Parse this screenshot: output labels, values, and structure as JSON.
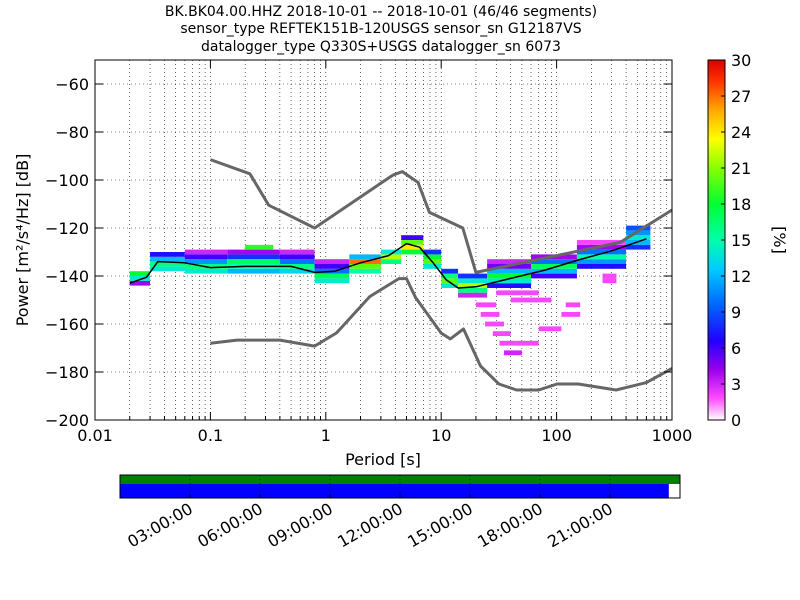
{
  "chart_data": {
    "type": "heatmap",
    "title_lines": [
      "BK.BK04.00.HHZ   2018-10-01 -- 2018-10-01  (46/46 segments)",
      "sensor_type REFTEK151B-120USGS sensor_sn G12187VS",
      "datalogger_type Q330S+USGS datalogger_sn 6073"
    ],
    "xlabel": "Period [s]",
    "ylabel": "Power [m²/s⁴/Hz] [dB]",
    "xscale": "log",
    "xlim": [
      0.01,
      1000
    ],
    "ylim": [
      -200,
      -50
    ],
    "x_ticks": [
      0.01,
      0.1,
      1,
      10,
      100,
      1000
    ],
    "x_tick_labels": [
      "0.01",
      "0.1",
      "1",
      "10",
      "100",
      "1000"
    ],
    "y_ticks": [
      -200,
      -180,
      -160,
      -140,
      -120,
      -100,
      -80,
      -60
    ],
    "y_tick_labels": [
      "−200",
      "−180",
      "−160",
      "−140",
      "−120",
      "−100",
      "−80",
      "−60"
    ],
    "grid": true,
    "colorbar": {
      "label": "[%]",
      "range": [
        0,
        30
      ],
      "ticks": [
        0,
        3,
        6,
        9,
        12,
        15,
        18,
        21,
        24,
        27,
        30
      ],
      "tick_labels": [
        "0",
        "3",
        "6",
        "9",
        "12",
        "15",
        "18",
        "21",
        "24",
        "27",
        "30"
      ]
    },
    "series": [
      {
        "role": "new_high_noise_model",
        "color": "#666666",
        "x": [
          0.1,
          0.22,
          0.32,
          0.8,
          3.8,
          4.6,
          6.3,
          7.9,
          15.4,
          20,
          354.8,
          1000
        ],
        "y": [
          -91.5,
          -97.4,
          -110.5,
          -120.0,
          -98.0,
          -96.5,
          -101.0,
          -113.5,
          -120.0,
          -138.5,
          -126.0,
          -112.5
        ]
      },
      {
        "role": "new_low_noise_model",
        "color": "#666666",
        "x": [
          0.1,
          0.17,
          0.4,
          0.8,
          1.24,
          2.4,
          4.3,
          5.0,
          6.0,
          10.0,
          12.0,
          15.6,
          21.9,
          31.6,
          45.0,
          70.0,
          101.0,
          154.0,
          328.0,
          600.0,
          1000.0
        ],
        "y": [
          -168.0,
          -166.7,
          -166.7,
          -169.2,
          -163.7,
          -148.6,
          -141.1,
          -141.1,
          -149.0,
          -163.8,
          -166.2,
          -162.1,
          -177.5,
          -185.0,
          -187.5,
          -187.5,
          -185.0,
          -185.0,
          -187.5,
          -184.4,
          -178.5
        ]
      },
      {
        "role": "mode_line",
        "color": "#000000",
        "x": [
          0.02,
          0.028,
          0.035,
          0.06,
          0.1,
          0.2,
          0.5,
          0.8,
          1.2,
          2.0,
          3.5,
          5.0,
          6.5,
          8.5,
          11.0,
          14.0,
          20.0,
          40.0,
          80.0,
          150.0,
          300.0,
          600.0
        ],
        "y": [
          -143.0,
          -140.5,
          -134.0,
          -134.5,
          -136.5,
          -136.0,
          -136.0,
          -138.5,
          -138.0,
          -134.5,
          -131.5,
          -126.5,
          -128.0,
          -134.5,
          -141.5,
          -145.0,
          -144.5,
          -141.0,
          -137.5,
          -133.5,
          -129.5,
          -124.5
        ]
      }
    ],
    "psd_cells": [
      {
        "x0": 0.02,
        "x1": 0.03,
        "y": -143,
        "pct": 4
      },
      {
        "x0": 0.02,
        "x1": 0.03,
        "y": -141,
        "pct": 14
      },
      {
        "x0": 0.02,
        "x1": 0.03,
        "y": -139,
        "pct": 18
      },
      {
        "x0": 0.03,
        "x1": 0.06,
        "y": -137,
        "pct": 14
      },
      {
        "x0": 0.03,
        "x1": 0.06,
        "y": -135,
        "pct": 16
      },
      {
        "x0": 0.03,
        "x1": 0.06,
        "y": -133,
        "pct": 12
      },
      {
        "x0": 0.03,
        "x1": 0.06,
        "y": -131,
        "pct": 7
      },
      {
        "x0": 0.06,
        "x1": 0.14,
        "y": -138,
        "pct": 14
      },
      {
        "x0": 0.06,
        "x1": 0.14,
        "y": -136,
        "pct": 16
      },
      {
        "x0": 0.06,
        "x1": 0.14,
        "y": -134,
        "pct": 11
      },
      {
        "x0": 0.06,
        "x1": 0.14,
        "y": -132,
        "pct": 6
      },
      {
        "x0": 0.06,
        "x1": 0.14,
        "y": -130,
        "pct": 3
      },
      {
        "x0": 0.14,
        "x1": 0.4,
        "y": -138,
        "pct": 12
      },
      {
        "x0": 0.14,
        "x1": 0.4,
        "y": -136,
        "pct": 15
      },
      {
        "x0": 0.14,
        "x1": 0.4,
        "y": -134,
        "pct": 17
      },
      {
        "x0": 0.14,
        "x1": 0.4,
        "y": -132,
        "pct": 8
      },
      {
        "x0": 0.14,
        "x1": 0.4,
        "y": -130,
        "pct": 4
      },
      {
        "x0": 0.2,
        "x1": 0.35,
        "y": -128,
        "pct": 19
      },
      {
        "x0": 0.4,
        "x1": 0.8,
        "y": -138,
        "pct": 13
      },
      {
        "x0": 0.4,
        "x1": 0.8,
        "y": -136,
        "pct": 16
      },
      {
        "x0": 0.4,
        "x1": 0.8,
        "y": -134,
        "pct": 10
      },
      {
        "x0": 0.4,
        "x1": 0.8,
        "y": -132,
        "pct": 6
      },
      {
        "x0": 0.4,
        "x1": 0.8,
        "y": -130,
        "pct": 3
      },
      {
        "x0": 0.8,
        "x1": 1.6,
        "y": -142,
        "pct": 14
      },
      {
        "x0": 0.8,
        "x1": 1.6,
        "y": -140,
        "pct": 17
      },
      {
        "x0": 0.8,
        "x1": 1.6,
        "y": -138,
        "pct": 10
      },
      {
        "x0": 0.8,
        "x1": 1.6,
        "y": -136,
        "pct": 6
      },
      {
        "x0": 0.8,
        "x1": 1.6,
        "y": -134,
        "pct": 3
      },
      {
        "x0": 1.6,
        "x1": 3.0,
        "y": -138,
        "pct": 15
      },
      {
        "x0": 1.6,
        "x1": 3.0,
        "y": -136,
        "pct": 20
      },
      {
        "x0": 1.6,
        "x1": 3.0,
        "y": -134,
        "pct": 27
      },
      {
        "x0": 1.6,
        "x1": 3.0,
        "y": -132,
        "pct": 12
      },
      {
        "x0": 3.0,
        "x1": 4.5,
        "y": -134,
        "pct": 16
      },
      {
        "x0": 3.0,
        "x1": 4.5,
        "y": -132,
        "pct": 22
      },
      {
        "x0": 3.0,
        "x1": 4.5,
        "y": -130,
        "pct": 14
      },
      {
        "x0": 4.5,
        "x1": 7.0,
        "y": -130,
        "pct": 18
      },
      {
        "x0": 4.5,
        "x1": 7.0,
        "y": -128,
        "pct": 24
      },
      {
        "x0": 4.5,
        "x1": 7.0,
        "y": -126,
        "pct": 20
      },
      {
        "x0": 4.5,
        "x1": 7.0,
        "y": -124,
        "pct": 6
      },
      {
        "x0": 7.0,
        "x1": 10.0,
        "y": -136,
        "pct": 14
      },
      {
        "x0": 7.0,
        "x1": 10.0,
        "y": -134,
        "pct": 20
      },
      {
        "x0": 7.0,
        "x1": 10.0,
        "y": -132,
        "pct": 18
      },
      {
        "x0": 7.0,
        "x1": 10.0,
        "y": -130,
        "pct": 8
      },
      {
        "x0": 10.0,
        "x1": 14.0,
        "y": -144,
        "pct": 14
      },
      {
        "x0": 10.0,
        "x1": 14.0,
        "y": -142,
        "pct": 20
      },
      {
        "x0": 10.0,
        "x1": 14.0,
        "y": -140,
        "pct": 16
      },
      {
        "x0": 10.0,
        "x1": 14.0,
        "y": -138,
        "pct": 8
      },
      {
        "x0": 14.0,
        "x1": 25.0,
        "y": -146,
        "pct": 16
      },
      {
        "x0": 14.0,
        "x1": 25.0,
        "y": -144,
        "pct": 22
      },
      {
        "x0": 14.0,
        "x1": 25.0,
        "y": -142,
        "pct": 14
      },
      {
        "x0": 14.0,
        "x1": 25.0,
        "y": -140,
        "pct": 8
      },
      {
        "x0": 14.0,
        "x1": 25.0,
        "y": -148,
        "pct": 3
      },
      {
        "x0": 25.0,
        "x1": 60.0,
        "y": -144,
        "pct": 7
      },
      {
        "x0": 25.0,
        "x1": 60.0,
        "y": -142,
        "pct": 14
      },
      {
        "x0": 25.0,
        "x1": 60.0,
        "y": -140,
        "pct": 18
      },
      {
        "x0": 25.0,
        "x1": 60.0,
        "y": -138,
        "pct": 12
      },
      {
        "x0": 25.0,
        "x1": 60.0,
        "y": -136,
        "pct": 5
      },
      {
        "x0": 25.0,
        "x1": 60.0,
        "y": -134,
        "pct": 3
      },
      {
        "x0": 60.0,
        "x1": 150.0,
        "y": -140,
        "pct": 6
      },
      {
        "x0": 60.0,
        "x1": 150.0,
        "y": -138,
        "pct": 12
      },
      {
        "x0": 60.0,
        "x1": 150.0,
        "y": -136,
        "pct": 17
      },
      {
        "x0": 60.0,
        "x1": 150.0,
        "y": -134,
        "pct": 10
      },
      {
        "x0": 60.0,
        "x1": 150.0,
        "y": -132,
        "pct": 4
      },
      {
        "x0": 150.0,
        "x1": 400.0,
        "y": -136,
        "pct": 7
      },
      {
        "x0": 150.0,
        "x1": 400.0,
        "y": -134,
        "pct": 11
      },
      {
        "x0": 150.0,
        "x1": 400.0,
        "y": -132,
        "pct": 15
      },
      {
        "x0": 150.0,
        "x1": 400.0,
        "y": -130,
        "pct": 10
      },
      {
        "x0": 150.0,
        "x1": 400.0,
        "y": -128,
        "pct": 4
      },
      {
        "x0": 150.0,
        "x1": 400.0,
        "y": -126,
        "pct": 2
      },
      {
        "x0": 400.0,
        "x1": 650.0,
        "y": -128,
        "pct": 8
      },
      {
        "x0": 400.0,
        "x1": 650.0,
        "y": -126,
        "pct": 12
      },
      {
        "x0": 400.0,
        "x1": 650.0,
        "y": -124,
        "pct": 14
      },
      {
        "x0": 400.0,
        "x1": 650.0,
        "y": -122,
        "pct": 11
      },
      {
        "x0": 400.0,
        "x1": 650.0,
        "y": -120,
        "pct": 9
      },
      {
        "x0": 20.0,
        "x1": 30.0,
        "y": -152,
        "pct": 2
      },
      {
        "x0": 22.0,
        "x1": 32.0,
        "y": -156,
        "pct": 2
      },
      {
        "x0": 24.0,
        "x1": 35.0,
        "y": -160,
        "pct": 2
      },
      {
        "x0": 28.0,
        "x1": 40.0,
        "y": -164,
        "pct": 2
      },
      {
        "x0": 32.0,
        "x1": 45.0,
        "y": -168,
        "pct": 2
      },
      {
        "x0": 35.0,
        "x1": 50.0,
        "y": -172,
        "pct": 3
      },
      {
        "x0": 45.0,
        "x1": 70.0,
        "y": -168,
        "pct": 2
      },
      {
        "x0": 70.0,
        "x1": 110.0,
        "y": -162,
        "pct": 2
      },
      {
        "x0": 110.0,
        "x1": 160.0,
        "y": -156,
        "pct": 2
      },
      {
        "x0": 40.0,
        "x1": 90.0,
        "y": -150,
        "pct": 2
      },
      {
        "x0": 30.0,
        "x1": 70.0,
        "y": -147,
        "pct": 2
      },
      {
        "x0": 120.0,
        "x1": 160.0,
        "y": -152,
        "pct": 2
      },
      {
        "x0": 250.0,
        "x1": 330.0,
        "y": -140,
        "pct": 2
      },
      {
        "x0": 250.0,
        "x1": 330.0,
        "y": -142,
        "pct": 2
      }
    ],
    "time_axis": {
      "tick_labels": [
        "03:00:00",
        "06:00:00",
        "09:00:00",
        "12:00:00",
        "15:00:00",
        "18:00:00",
        "21:00:00"
      ],
      "coverage_color": "#008000",
      "data_color": "#0000ff",
      "data_fraction": 0.98
    }
  }
}
